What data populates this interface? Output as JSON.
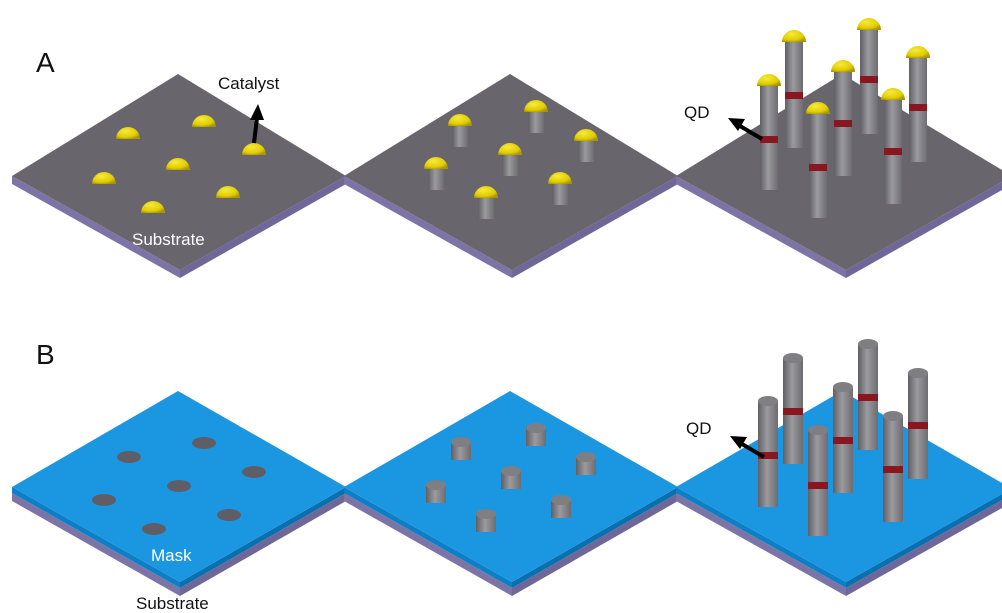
{
  "panels": {
    "a": {
      "letter": "A",
      "catalyst_label": "Catalyst",
      "substrate_label": "Substrate",
      "qd_label": "QD"
    },
    "b": {
      "letter": "B",
      "mask_label": "Mask",
      "substrate_label": "Substrate",
      "qd_label": "QD"
    }
  },
  "colors": {
    "substrate_top": "#69656d",
    "substrate_side": "#7d74a6",
    "mask_top": "#1b97e2",
    "mask_side": "#0e7fc5",
    "catalyst": "#e5d300",
    "catalyst_shadow": "#b8a500",
    "nanowire": "#8a8a8f",
    "nanowire_dark": "#6e6e73",
    "quantum_dot": "#8a1620",
    "hole": "#5f5e66",
    "arrow": "#000000"
  }
}
